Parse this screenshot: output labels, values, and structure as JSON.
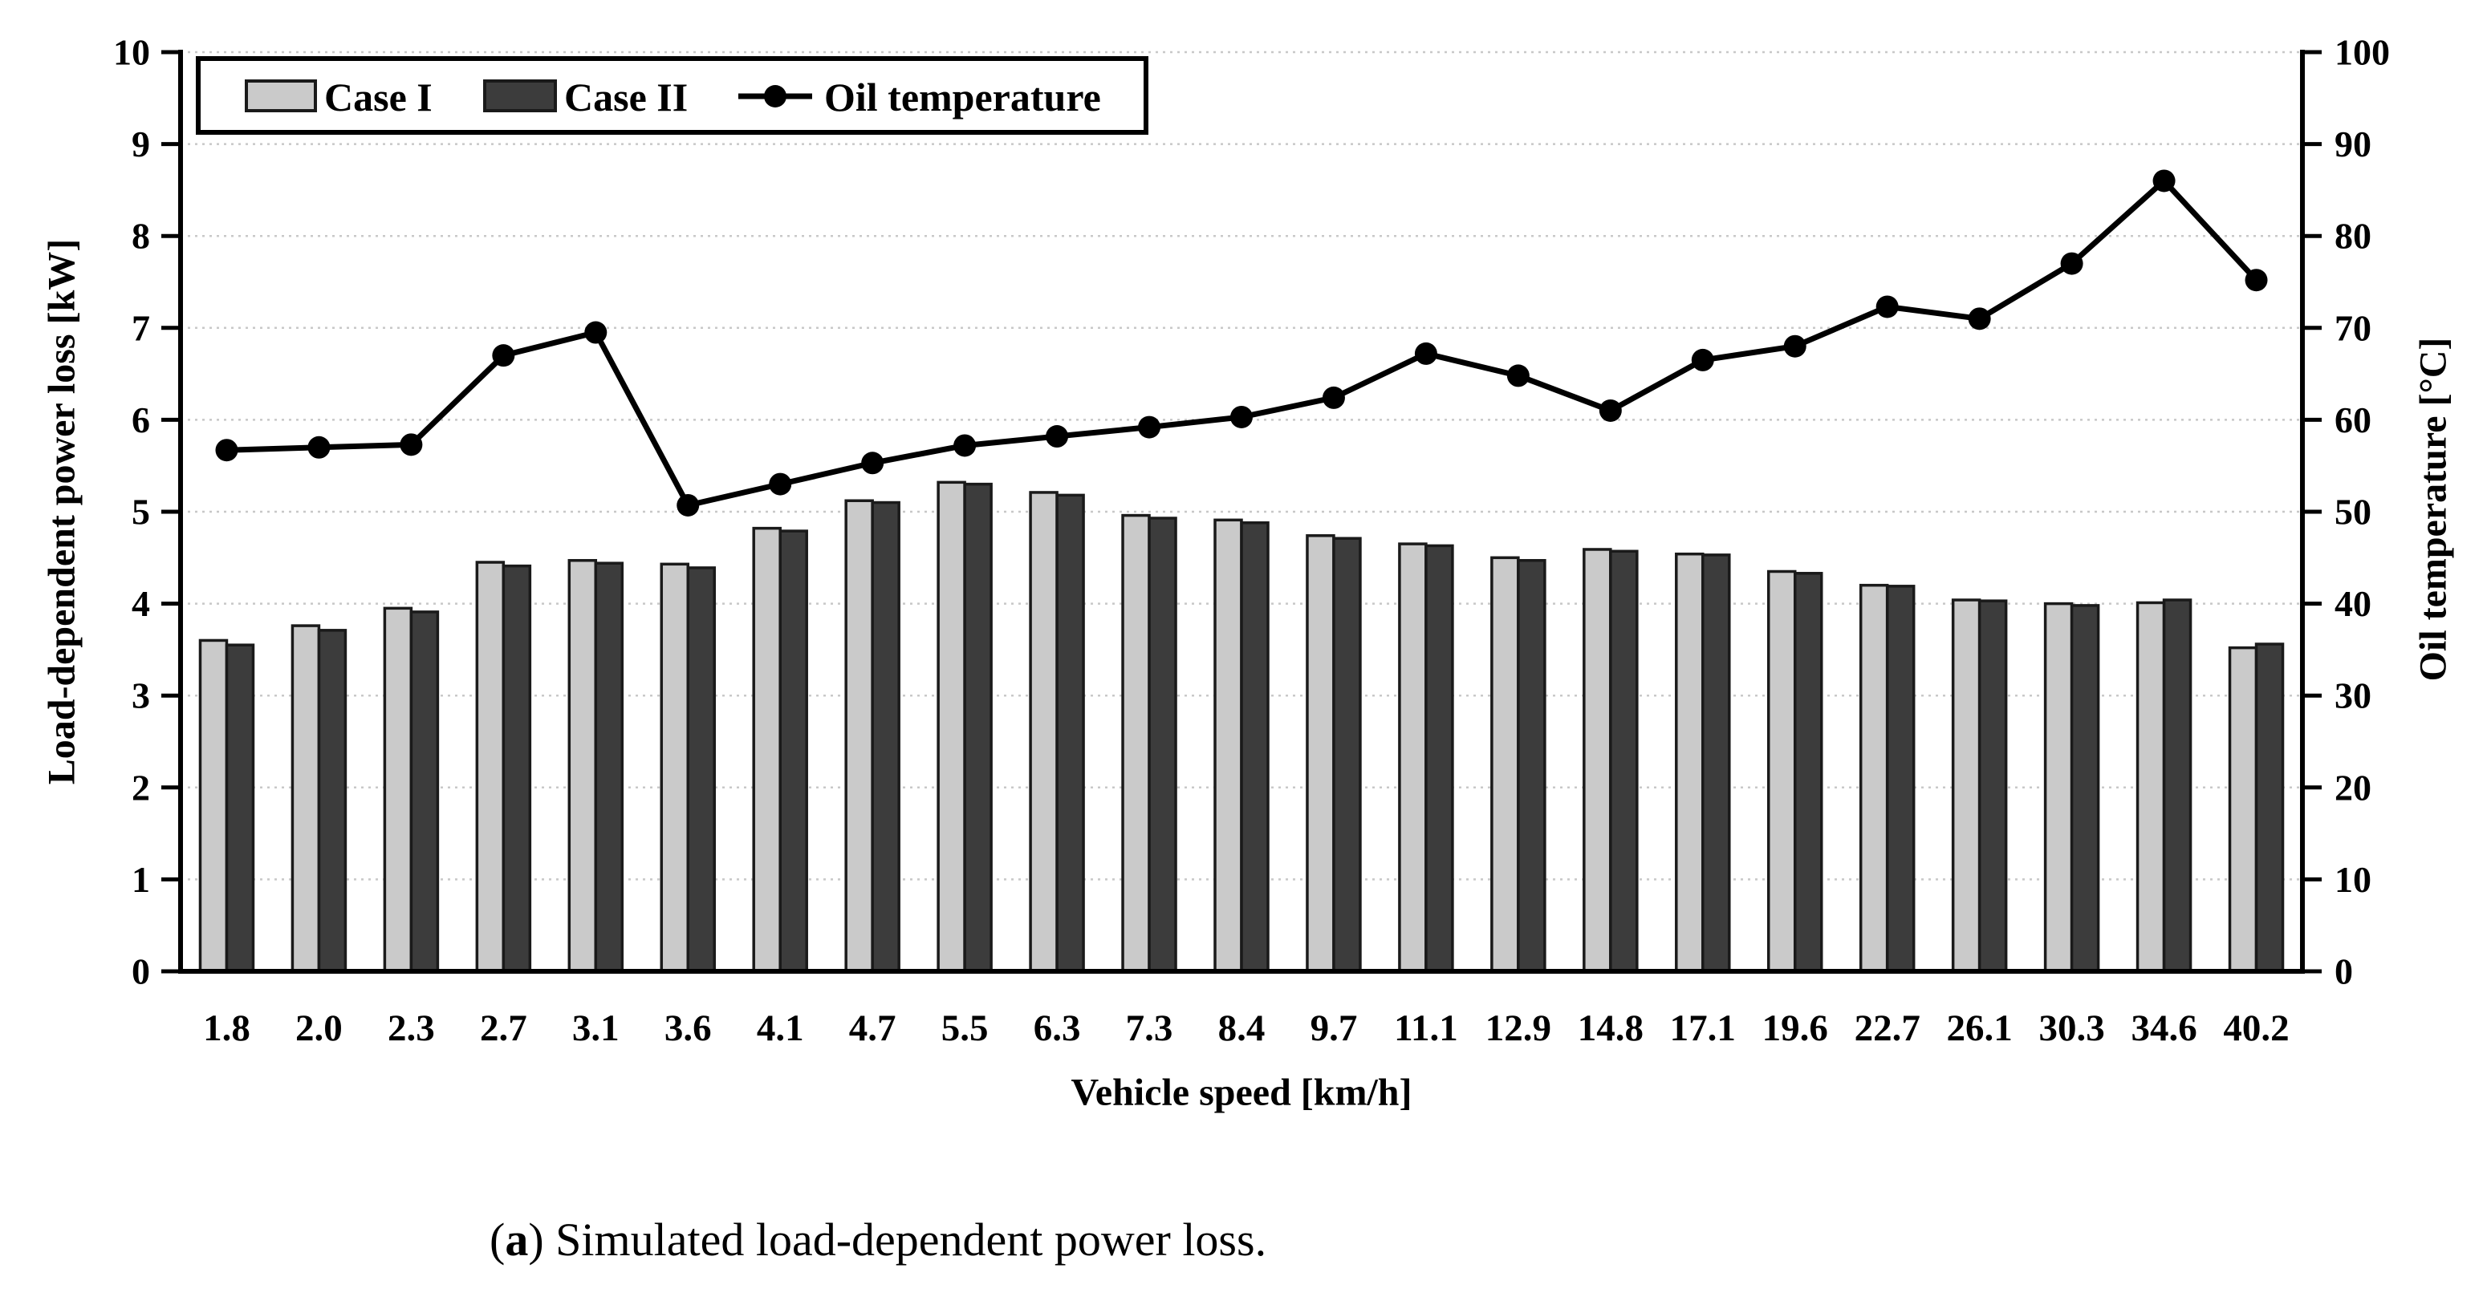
{
  "caption": {
    "open": "(",
    "bold": "a",
    "close": ")",
    "text": " Simulated load-dependent power loss."
  },
  "colors": {
    "case1_fill": "#cacaca",
    "case2_fill": "#3c3c3c",
    "bar_border": "#1a1a1a",
    "line": "#000000",
    "grid": "#c8c8c8",
    "axis": "#000000",
    "legend_bg": "#ffffff"
  },
  "chart_data": {
    "type": "bar",
    "subtype": "grouped bars with overlaid line on secondary axis",
    "title": "",
    "xlabel": "Vehicle speed [km/h]",
    "ylabel_left": "Load-dependent power loss [kW]",
    "ylabel_right": "Oil temperature [°C]",
    "ylim_left": [
      0,
      10
    ],
    "ylim_right": [
      0,
      100
    ],
    "yticks_left": [
      0,
      1,
      2,
      3,
      4,
      5,
      6,
      7,
      8,
      9,
      10
    ],
    "yticks_right": [
      0,
      10,
      20,
      30,
      40,
      50,
      60,
      70,
      80,
      90,
      100
    ],
    "grid": "horizontal dashed gridlines at each left-axis unit",
    "legend_position": "boxed, top-left inside plot area",
    "categories": [
      "1.8",
      "2.0",
      "2.3",
      "2.7",
      "3.1",
      "3.6",
      "4.1",
      "4.7",
      "5.5",
      "6.3",
      "7.3",
      "8.4",
      "9.7",
      "11.1",
      "12.9",
      "14.8",
      "17.1",
      "19.6",
      "22.7",
      "26.1",
      "30.3",
      "34.6",
      "40.2"
    ],
    "series": [
      {
        "name": "Case I",
        "type": "bar",
        "axis": "left",
        "values": [
          3.6,
          3.76,
          3.95,
          4.45,
          4.47,
          4.43,
          4.82,
          5.12,
          5.32,
          5.21,
          4.96,
          4.91,
          4.74,
          4.65,
          4.5,
          4.59,
          4.54,
          4.35,
          4.2,
          4.04,
          4.0,
          4.01,
          3.52
        ]
      },
      {
        "name": "Case II",
        "type": "bar",
        "axis": "left",
        "values": [
          3.55,
          3.71,
          3.91,
          4.41,
          4.44,
          4.39,
          4.79,
          5.1,
          5.3,
          5.18,
          4.93,
          4.88,
          4.71,
          4.63,
          4.47,
          4.57,
          4.53,
          4.33,
          4.19,
          4.03,
          3.98,
          4.04,
          3.56
        ]
      },
      {
        "name": "Oil temperature",
        "type": "line",
        "axis": "right",
        "values": [
          56.7,
          57.0,
          57.3,
          67.0,
          69.5,
          50.7,
          53.0,
          55.3,
          57.2,
          58.2,
          59.2,
          60.3,
          62.4,
          67.2,
          64.8,
          61.0,
          66.5,
          68.0,
          72.3,
          71.0,
          77.0,
          86.0,
          75.2
        ]
      }
    ]
  }
}
